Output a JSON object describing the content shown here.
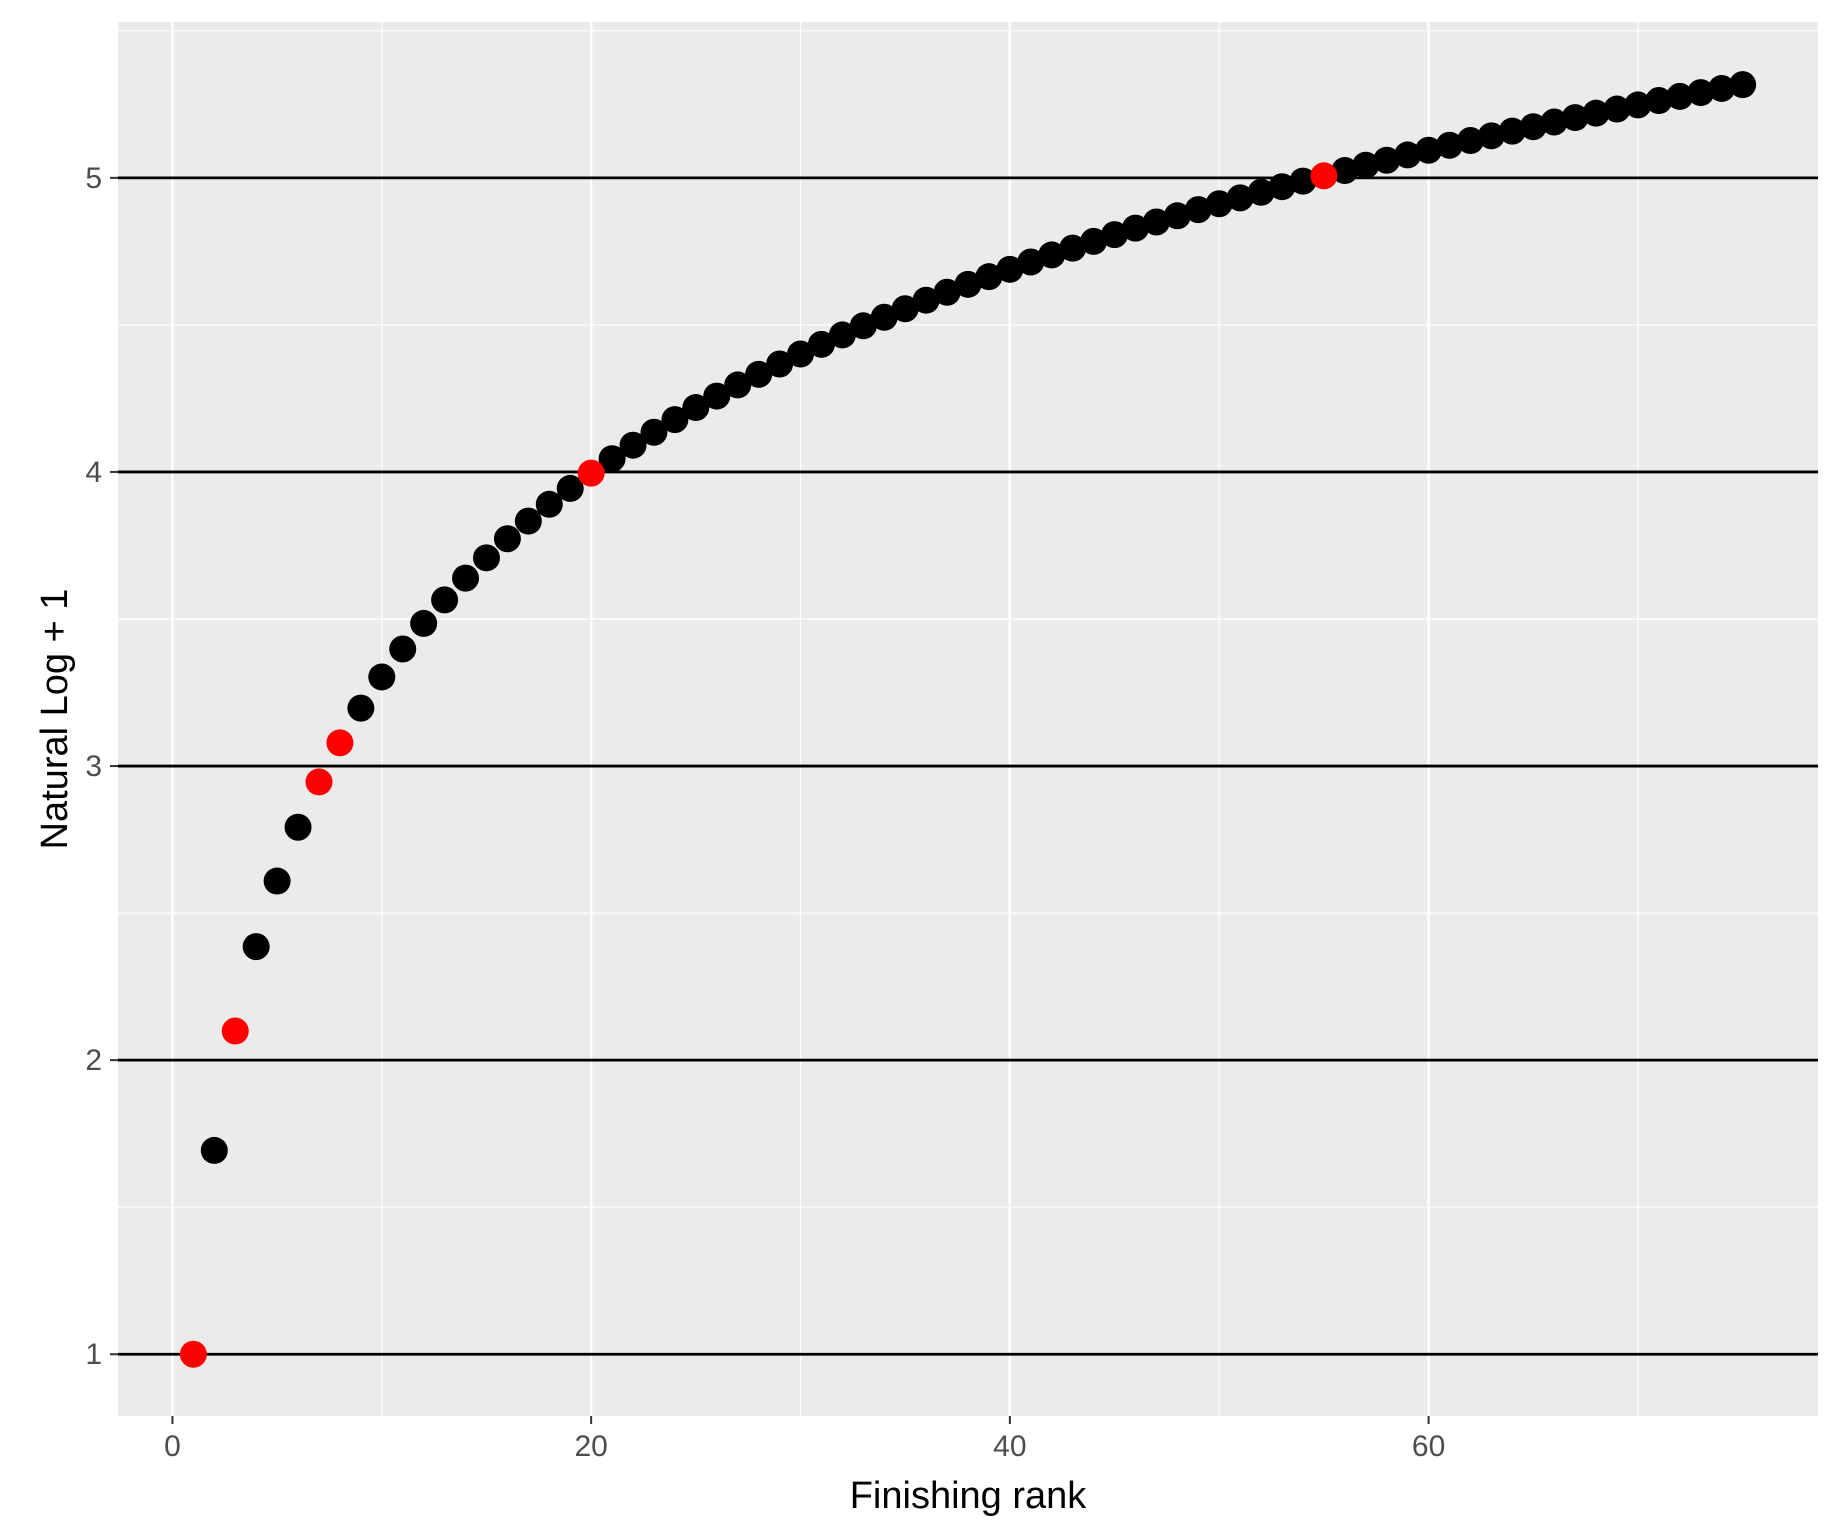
{
  "chart_data": {
    "type": "scatter",
    "xlabel": "Finishing rank",
    "ylabel": "Natural Log + 1",
    "xlim": [
      -2.6,
      78.6
    ],
    "ylim": [
      0.79,
      5.53
    ],
    "x_ticks": [
      0,
      20,
      40,
      60
    ],
    "x_tick_labels": [
      "0",
      "20",
      "40",
      "60"
    ],
    "y_ticks": [
      1,
      2,
      3,
      4,
      5
    ],
    "y_tick_labels": [
      "1",
      "2",
      "3",
      "4",
      "5"
    ],
    "grid": true,
    "horizontal_reference_lines": [
      1,
      2,
      3,
      4,
      5
    ],
    "colors": {
      "panel": "#ebebeb",
      "grid": "#ffffff",
      "reference_line": "#000000",
      "point_default": "#000000",
      "point_highlight": "#ff0000"
    },
    "series": [
      {
        "color": "#000000",
        "x": [
          2,
          4,
          5,
          6,
          9,
          10,
          11,
          12,
          13,
          14,
          15,
          16,
          17,
          18,
          19,
          21,
          22,
          23,
          24,
          25,
          26,
          27,
          28,
          29,
          30,
          31,
          32,
          33,
          34,
          35,
          36,
          37,
          38,
          39,
          40,
          41,
          42,
          43,
          44,
          45,
          46,
          47,
          48,
          49,
          50,
          51,
          52,
          53,
          54,
          56,
          57,
          58,
          59,
          60,
          61,
          62,
          63,
          64,
          65,
          66,
          67,
          68,
          69,
          70,
          71,
          72,
          73,
          74,
          75
        ],
        "y": [
          1.693,
          2.386,
          2.609,
          2.792,
          3.197,
          3.303,
          3.398,
          3.485,
          3.565,
          3.639,
          3.708,
          3.773,
          3.833,
          3.89,
          3.944,
          4.045,
          4.091,
          4.135,
          4.178,
          4.219,
          4.258,
          4.296,
          4.332,
          4.367,
          4.401,
          4.434,
          4.466,
          4.497,
          4.526,
          4.555,
          4.584,
          4.611,
          4.638,
          4.664,
          4.689,
          4.714,
          4.738,
          4.761,
          4.784,
          4.807,
          4.829,
          4.85,
          4.871,
          4.892,
          4.912,
          4.932,
          4.951,
          4.97,
          4.989,
          5.025,
          5.043,
          5.06,
          5.078,
          5.094,
          5.111,
          5.127,
          5.143,
          5.159,
          5.174,
          5.19,
          5.205,
          5.22,
          5.234,
          5.248,
          5.263,
          5.277,
          5.29,
          5.304,
          5.317
        ]
      },
      {
        "color": "#ff0000",
        "x": [
          1,
          3,
          7,
          8,
          20,
          55
        ],
        "y": [
          1.0,
          2.099,
          2.946,
          3.079,
          3.996,
          5.007
        ]
      }
    ]
  }
}
